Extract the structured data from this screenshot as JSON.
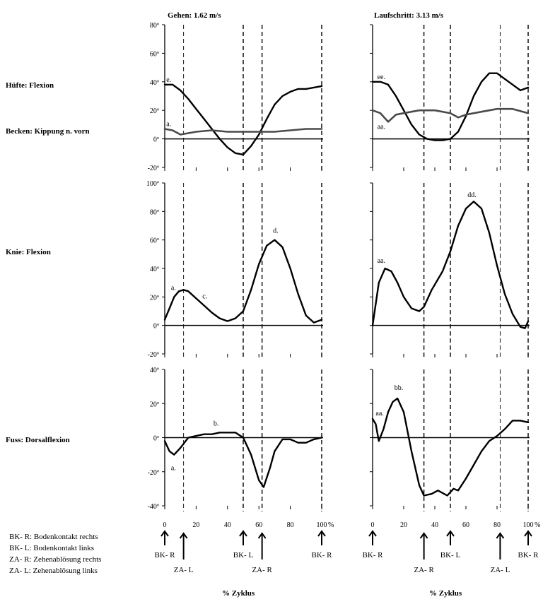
{
  "panels_titles": [
    "Gehen: 1.62 m/s",
    "Laufschritt: 3.13 m/s"
  ],
  "row_labels": {
    "hip": "Hüfte: Flexion",
    "pelvis": "Becken: Kippung n. vorn",
    "knee": "Knie: Flexion",
    "foot": "Fuss: Dorsalflexion"
  },
  "legend": [
    "BK- R: Bodenkontakt rechts",
    "BK- L: Bodenkontakt links",
    "ZA- R: Zehenablösung rechts",
    "ZA- L: Zehenablösung links"
  ],
  "x_caption": "% Zyklus",
  "x_ticks": [
    "0",
    "20",
    "40",
    "60",
    "80",
    "100"
  ],
  "x_unit": "%",
  "colors": {
    "primary": "#000000",
    "secondary": "#4a4a4a"
  },
  "chart_data": [
    {
      "type": "line",
      "panel": "walk-hip-pelvis",
      "title": "Gehen: 1.62 m/s",
      "xlim": [
        0,
        100
      ],
      "ylim": [
        -20,
        80
      ],
      "yticks": [
        "80º",
        "60º",
        "40º",
        "20º",
        "0º",
        "-20º"
      ],
      "series": [
        {
          "name": "Hüfte: Flexion",
          "x": [
            0,
            5,
            10,
            15,
            20,
            25,
            30,
            35,
            40,
            45,
            50,
            55,
            60,
            65,
            70,
            75,
            80,
            85,
            90,
            95,
            100
          ],
          "y": [
            38,
            38,
            34,
            28,
            21,
            14,
            7,
            0,
            -6,
            -10,
            -11,
            -5,
            3,
            14,
            24,
            30,
            33,
            35,
            35,
            36,
            37
          ]
        },
        {
          "name": "Becken: Kippung n. vorn",
          "x": [
            0,
            5,
            10,
            15,
            20,
            30,
            40,
            50,
            60,
            70,
            80,
            90,
            100
          ],
          "y": [
            7,
            6,
            3,
            4,
            5,
            6,
            5,
            5,
            5,
            5,
            6,
            7,
            7
          ]
        }
      ],
      "phase_lines": [
        {
          "x": 12,
          "label": "ZA- L"
        },
        {
          "x": 50,
          "label": "BK- L"
        },
        {
          "x": 62,
          "label": "ZA- R"
        },
        {
          "x": 100,
          "label": "BK- R"
        }
      ],
      "annotations": [
        {
          "text": "e.",
          "x": 1,
          "y": 40
        },
        {
          "text": "a.",
          "x": 1,
          "y": 9
        }
      ]
    },
    {
      "type": "line",
      "panel": "run-hip-pelvis",
      "title": "Laufschritt: 3.13 m/s",
      "xlim": [
        0,
        100
      ],
      "ylim": [
        -20,
        80
      ],
      "series": [
        {
          "name": "Hüfte: Flexion",
          "x": [
            0,
            5,
            10,
            15,
            20,
            25,
            30,
            35,
            40,
            45,
            50,
            55,
            60,
            65,
            70,
            75,
            80,
            85,
            90,
            95,
            100
          ],
          "y": [
            40,
            40,
            38,
            30,
            20,
            10,
            3,
            0,
            -1,
            -1,
            0,
            5,
            16,
            30,
            40,
            46,
            46,
            42,
            38,
            34,
            36
          ]
        },
        {
          "name": "Becken: Kippung n. vorn",
          "x": [
            0,
            5,
            10,
            15,
            20,
            30,
            40,
            50,
            55,
            60,
            70,
            80,
            90,
            100
          ],
          "y": [
            20,
            18,
            12,
            17,
            18,
            20,
            20,
            18,
            15,
            17,
            19,
            21,
            21,
            18
          ]
        }
      ],
      "phase_lines": [
        {
          "x": 33,
          "label": "ZA- R"
        },
        {
          "x": 50,
          "label": "BK- L"
        },
        {
          "x": 82,
          "label": "ZA- L"
        },
        {
          "x": 100,
          "label": "BK- R"
        }
      ],
      "annotations": [
        {
          "text": "ee.",
          "x": 3,
          "y": 42
        },
        {
          "text": "aa.",
          "x": 3,
          "y": 7
        }
      ]
    },
    {
      "type": "line",
      "panel": "walk-knee",
      "xlim": [
        0,
        100
      ],
      "ylim": [
        -20,
        100
      ],
      "yticks": [
        "100º",
        "80º",
        "60º",
        "40º",
        "20º",
        "0º",
        "-20º"
      ],
      "series": [
        {
          "name": "Knie: Flexion",
          "x": [
            0,
            3,
            6,
            9,
            12,
            15,
            20,
            25,
            30,
            35,
            40,
            45,
            50,
            55,
            60,
            65,
            70,
            75,
            80,
            85,
            90,
            95,
            100
          ],
          "y": [
            4,
            12,
            20,
            24,
            25,
            24,
            19,
            14,
            9,
            5,
            3,
            5,
            10,
            25,
            43,
            56,
            60,
            55,
            40,
            22,
            7,
            2,
            4
          ]
        }
      ],
      "phase_lines": [
        {
          "x": 12,
          "label": "ZA- L"
        },
        {
          "x": 50,
          "label": "BK- L"
        },
        {
          "x": 62,
          "label": "ZA- R"
        },
        {
          "x": 100,
          "label": "BK- R"
        }
      ],
      "annotations": [
        {
          "text": "a.",
          "x": 4,
          "y": 25
        },
        {
          "text": "c.",
          "x": 24,
          "y": 19
        },
        {
          "text": "d.",
          "x": 69,
          "y": 65
        }
      ]
    },
    {
      "type": "line",
      "panel": "run-knee",
      "xlim": [
        0,
        100
      ],
      "ylim": [
        -20,
        100
      ],
      "series": [
        {
          "name": "Knie: Flexion",
          "x": [
            0,
            4,
            8,
            12,
            16,
            20,
            25,
            30,
            33,
            38,
            45,
            50,
            55,
            60,
            65,
            70,
            75,
            80,
            85,
            90,
            95,
            98,
            100
          ],
          "y": [
            0,
            30,
            40,
            38,
            30,
            20,
            12,
            10,
            13,
            25,
            38,
            52,
            70,
            82,
            87,
            82,
            65,
            42,
            22,
            8,
            -1,
            -2,
            3
          ]
        }
      ],
      "phase_lines": [
        {
          "x": 33,
          "label": "ZA- R"
        },
        {
          "x": 50,
          "label": "BK- L"
        },
        {
          "x": 82,
          "label": "ZA- L"
        },
        {
          "x": 100,
          "label": "BK- R"
        }
      ],
      "annotations": [
        {
          "text": "aa.",
          "x": 3,
          "y": 44
        },
        {
          "text": "dd.",
          "x": 61,
          "y": 90
        }
      ]
    },
    {
      "type": "line",
      "panel": "walk-foot",
      "xlim": [
        0,
        100
      ],
      "ylim": [
        -40,
        40
      ],
      "yticks": [
        "40º",
        "20º",
        "0º",
        "-20º",
        "-40º"
      ],
      "series": [
        {
          "name": "Fuss: Dorsalflexion",
          "x": [
            0,
            3,
            6,
            10,
            15,
            20,
            25,
            30,
            35,
            40,
            45,
            50,
            55,
            60,
            63,
            67,
            70,
            75,
            80,
            85,
            90,
            95,
            100
          ],
          "y": [
            -2,
            -8,
            -10,
            -6,
            0,
            1,
            2,
            2,
            3,
            3,
            3,
            0,
            -10,
            -25,
            -29,
            -18,
            -8,
            -1,
            -1,
            -3,
            -3,
            -1,
            0
          ]
        }
      ],
      "phase_lines": [
        {
          "x": 12,
          "label": "ZA- L"
        },
        {
          "x": 50,
          "label": "BK- L"
        },
        {
          "x": 62,
          "label": "ZA- R"
        },
        {
          "x": 100,
          "label": "BK- R"
        }
      ],
      "annotations": [
        {
          "text": "b.",
          "x": 31,
          "y": 7
        },
        {
          "text": "a.",
          "x": 4,
          "y": -19
        }
      ]
    },
    {
      "type": "line",
      "panel": "run-foot",
      "xlim": [
        0,
        100
      ],
      "ylim": [
        -40,
        40
      ],
      "series": [
        {
          "name": "Fuss: Dorsalflexion",
          "x": [
            0,
            2,
            4,
            7,
            10,
            13,
            16,
            20,
            25,
            30,
            33,
            38,
            42,
            48,
            52,
            55,
            60,
            65,
            70,
            75,
            80,
            85,
            90,
            95,
            100
          ],
          "y": [
            11,
            8,
            -2,
            5,
            15,
            21,
            23,
            15,
            -8,
            -28,
            -34,
            -33,
            -31,
            -34,
            -30,
            -31,
            -24,
            -16,
            -8,
            -2,
            1,
            5,
            10,
            10,
            9
          ]
        }
      ],
      "phase_lines": [
        {
          "x": 33,
          "label": "ZA- R"
        },
        {
          "x": 50,
          "label": "BK- L"
        },
        {
          "x": 82,
          "label": "ZA- L"
        },
        {
          "x": 100,
          "label": "BK- R"
        }
      ],
      "annotations": [
        {
          "text": "aa.",
          "x": 2,
          "y": 13
        },
        {
          "text": "bb.",
          "x": 14,
          "y": 28
        }
      ]
    }
  ]
}
